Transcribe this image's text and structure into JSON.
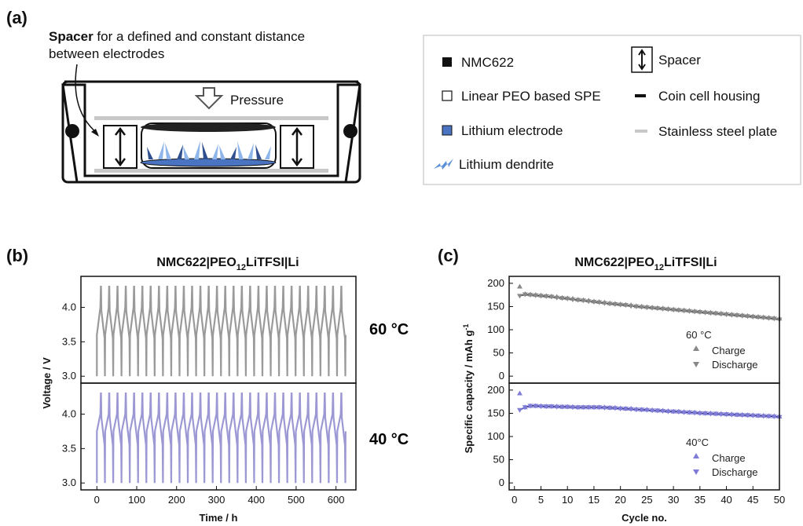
{
  "panel_a": {
    "label": "(a)",
    "caption_bold": "Spacer",
    "caption_rest": " for a defined and constant distance",
    "caption_line2": "between electrodes",
    "pressure_label": "Pressure",
    "legend": [
      {
        "icon": "black-square",
        "label": "NMC622"
      },
      {
        "icon": "spacer-arrow",
        "label": "Spacer"
      },
      {
        "icon": "white-square",
        "label": "Linear PEO based SPE"
      },
      {
        "icon": "black-dash",
        "label": "Coin cell housing"
      },
      {
        "icon": "blue-square",
        "label": "Lithium electrode"
      },
      {
        "icon": "grey-dash",
        "label": "Stainless steel plate"
      },
      {
        "icon": "dendrite",
        "label": "Lithium dendrite"
      }
    ],
    "colors": {
      "lithium": "#4a73c2",
      "dendrite": "#5b8fd8",
      "housing": "#111111",
      "steel": "#c8c8c8"
    }
  },
  "panel_b": {
    "label": "(b)",
    "title_main": "NMC622|PEO",
    "title_sub": "12",
    "title_end": "LiTFSI|Li",
    "temp_top": "60 °C",
    "temp_bottom": "40 °C",
    "colors": {
      "top": "#9a9a9a",
      "bottom": "#9c98d4"
    }
  },
  "panel_c": {
    "label": "(c)",
    "title_main": "NMC622|PEO",
    "title_sub": "12",
    "title_end": "LiTFSI|Li",
    "ylabel_main": "Specific capacity / mAh g",
    "ylabel_sup": "-1",
    "legend_top": {
      "title": "60 °C",
      "charge": "Charge",
      "discharge": "Discharge"
    },
    "legend_bottom": {
      "title": "40°C",
      "charge": "Charge",
      "discharge": "Discharge"
    },
    "colors": {
      "top": "#888888",
      "bottom": "#7f7cd6",
      "top_line": "#444444",
      "bottom_line": "#2e2a8a"
    }
  },
  "chart_data": [
    {
      "type": "line",
      "title": "NMC622|PEO12LiTFSI|Li",
      "xlabel": "Time / h",
      "ylabel": "Voltage / V",
      "xlim": [
        -40,
        650
      ],
      "x_ticks": [
        0,
        100,
        200,
        300,
        400,
        500,
        600
      ],
      "panels": [
        {
          "name": "60 °C",
          "ylim": [
            2.9,
            4.45
          ],
          "y_ticks": [
            3.0,
            3.5,
            4.0
          ],
          "cycles": 30,
          "cycle_period_h": 20.8,
          "v_min": 3.0,
          "v_max": 4.3,
          "v_rest": 3.6
        },
        {
          "name": "40 °C",
          "ylim": [
            2.9,
            4.45
          ],
          "y_ticks": [
            3.0,
            3.5,
            4.0
          ],
          "cycles": 30,
          "cycle_period_h": 20.8,
          "v_min": 3.0,
          "v_max": 4.3,
          "v_rest": 3.75
        }
      ]
    },
    {
      "type": "scatter",
      "title": "NMC622|PEO12LiTFSI|Li",
      "xlabel": "Cycle no.",
      "ylabel": "Specific capacity / mAh g-1",
      "xlim": [
        -1,
        50
      ],
      "x_ticks": [
        0,
        5,
        10,
        15,
        20,
        25,
        30,
        35,
        40,
        45,
        50
      ],
      "panels": [
        {
          "name": "60 °C",
          "ylim": [
            -15,
            215
          ],
          "y_ticks": [
            0,
            50,
            100,
            150,
            200
          ],
          "series": [
            {
              "name": "Charge",
              "values": [
                193,
                177,
                176,
                175,
                174,
                173,
                172,
                171,
                169,
                168,
                167,
                165,
                164,
                163,
                161,
                160,
                159,
                157,
                156,
                155,
                154,
                153,
                151,
                150,
                149,
                148,
                147,
                146,
                145,
                144,
                143,
                142,
                141,
                140,
                139,
                138,
                137,
                136,
                135,
                134,
                133,
                132,
                131,
                130,
                129,
                128,
                127,
                126,
                125,
                124
              ],
              "x_start": 1
            },
            {
              "name": "Discharge",
              "values": [
                173,
                176,
                175,
                174,
                173,
                172,
                171,
                169,
                168,
                167,
                165,
                164,
                163,
                161,
                160,
                159,
                157,
                156,
                155,
                154,
                153,
                151,
                150,
                149,
                148,
                147,
                146,
                145,
                144,
                143,
                142,
                141,
                140,
                139,
                138,
                137,
                136,
                135,
                134,
                133,
                132,
                131,
                130,
                129,
                128,
                127,
                126,
                125,
                124,
                122
              ],
              "x_start": 1
            }
          ]
        },
        {
          "name": "40°C",
          "ylim": [
            -15,
            215
          ],
          "y_ticks": [
            0,
            50,
            100,
            150,
            200
          ],
          "series": [
            {
              "name": "Charge",
              "values": [
                193,
                163,
                166,
                166,
                166,
                165,
                165,
                165,
                164,
                164,
                164,
                163,
                163,
                163,
                163,
                163,
                163,
                162,
                162,
                161,
                160,
                160,
                159,
                158,
                158,
                157,
                156,
                156,
                155,
                154,
                154,
                153,
                152,
                152,
                151,
                150,
                150,
                149,
                149,
                148,
                148,
                147,
                147,
                146,
                146,
                145,
                145,
                144,
                144,
                143
              ],
              "x_start": 1
            },
            {
              "name": "Discharge",
              "values": [
                157,
                163,
                166,
                166,
                165,
                165,
                165,
                164,
                164,
                164,
                163,
                163,
                163,
                163,
                163,
                163,
                162,
                162,
                161,
                160,
                160,
                159,
                158,
                158,
                157,
                156,
                156,
                155,
                154,
                154,
                153,
                152,
                152,
                151,
                150,
                150,
                149,
                149,
                148,
                148,
                147,
                147,
                146,
                146,
                145,
                145,
                144,
                144,
                143,
                142
              ],
              "x_start": 1
            }
          ]
        }
      ]
    }
  ]
}
